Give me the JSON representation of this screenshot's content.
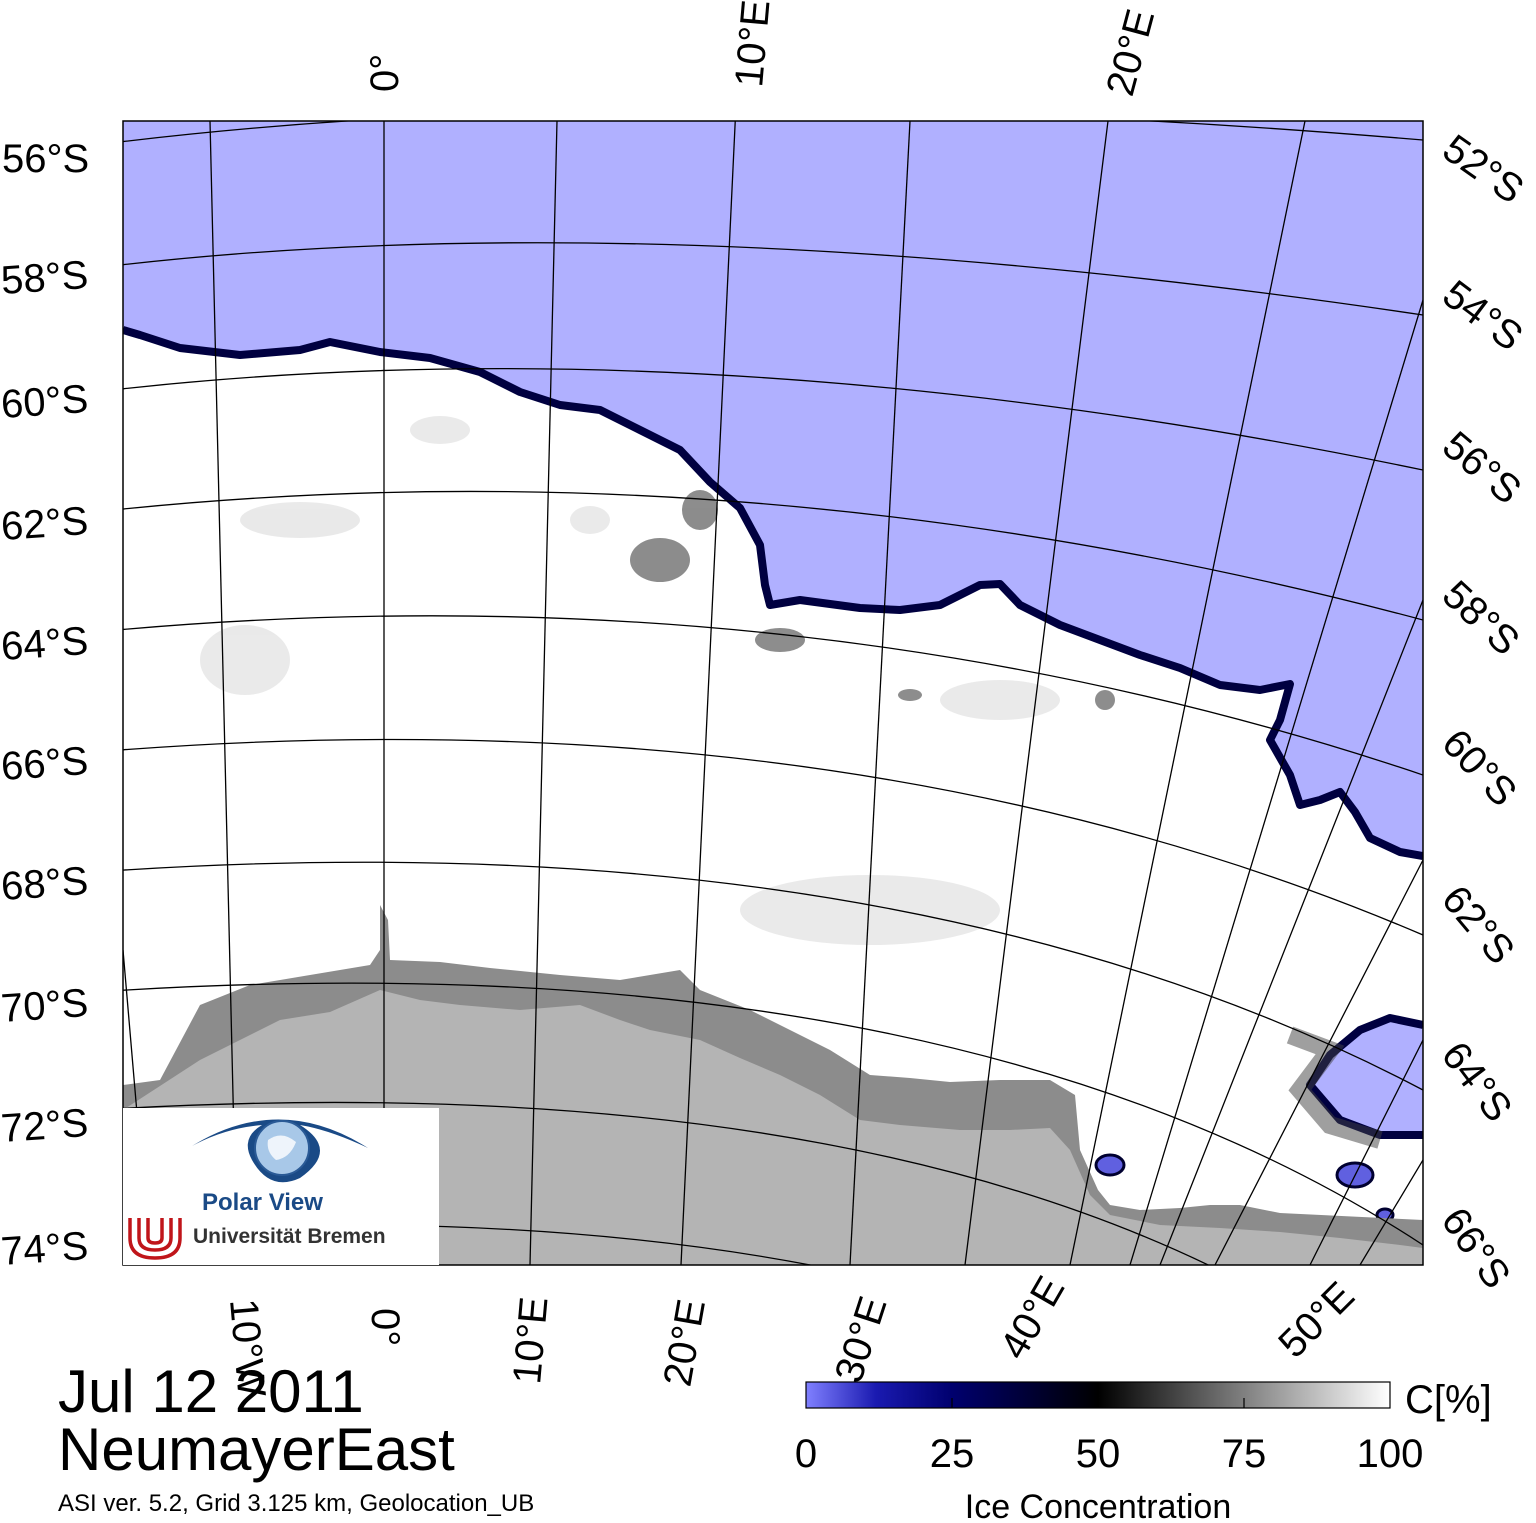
{
  "map": {
    "date": "Jul 12 2011",
    "region": "NeumayerEast",
    "info": "ASI ver. 5.2,  Grid 3.125 km, Geolocation_UB",
    "colors": {
      "water": "#b0b0ff",
      "ice": "#ffffff",
      "ice_shelf": "#8c8c8c",
      "land": "#b4b4b4",
      "ice_edge": "#000040"
    }
  },
  "axes": {
    "left_lat_labels": [
      "56°S",
      "58°S",
      "60°S",
      "62°S",
      "64°S",
      "66°S",
      "68°S",
      "70°S",
      "72°S",
      "74°S"
    ],
    "right_lat_labels": [
      "52°S",
      "54°S",
      "56°S",
      "58°S",
      "60°S",
      "62°S",
      "64°S",
      "66°S"
    ],
    "top_lon_labels": [
      "0°",
      "10°E",
      "20°E"
    ],
    "bottom_lon_labels": [
      "10°W",
      "0°",
      "10°E",
      "20°E",
      "30°E",
      "40°E",
      "50°E"
    ]
  },
  "colorbar": {
    "title": "Ice Concentration",
    "unit": "C[%]",
    "ticks": [
      "0",
      "25",
      "50",
      "75",
      "100"
    ],
    "colors": [
      "#8080ff",
      "#00006e",
      "#000000",
      "#808080",
      "#ffffff"
    ]
  },
  "logo": {
    "name": "Polar View",
    "institution": "Universität Bremen"
  }
}
